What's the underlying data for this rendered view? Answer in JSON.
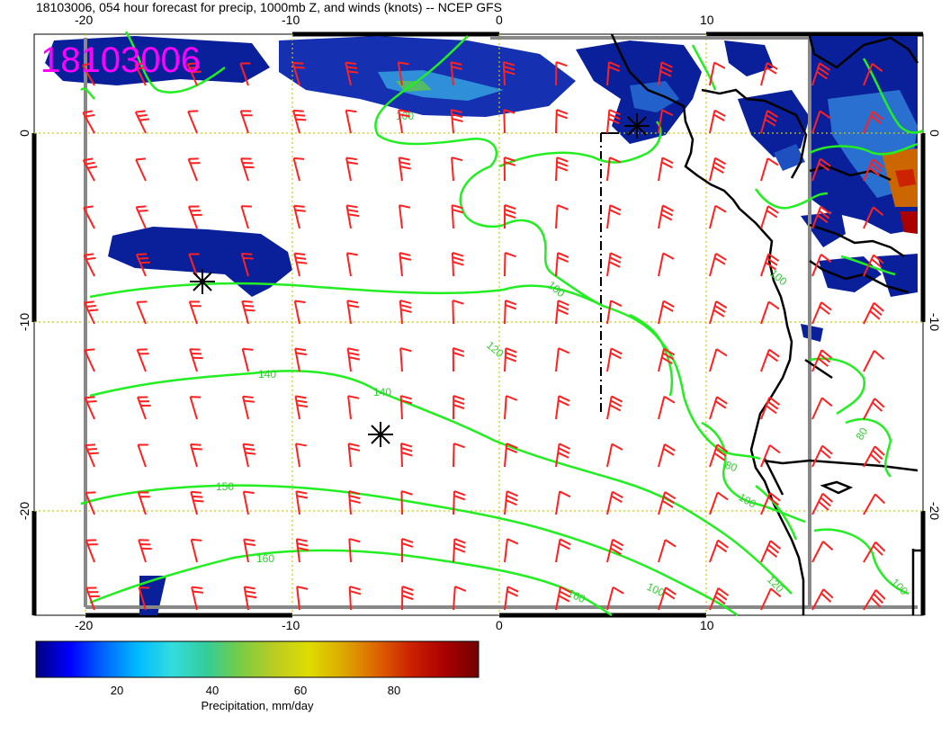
{
  "title": "18103006, 054 hour forecast for precip, 1000mb Z, and winds (knots) -- NCEP GFS",
  "stamp": "18103006",
  "top_ticks": [
    "-20",
    "-10",
    "0",
    "10"
  ],
  "bottom_ticks": [
    "-20",
    "-10",
    "0",
    "10"
  ],
  "left_ticks": [
    "0",
    "-10",
    "-20"
  ],
  "right_ticks": [
    "0",
    "-10",
    "-20"
  ],
  "contour_labels": [
    "100",
    "100",
    "140",
    "140",
    "120",
    "150",
    "160",
    "160",
    "100",
    "80",
    "100",
    "80",
    "100",
    "100",
    "120",
    "100"
  ],
  "colorbar": {
    "title": "Precipitation, mm/day",
    "ticks": [
      "20",
      "40",
      "60",
      "80"
    ],
    "colors": [
      "#00007f",
      "#0000ff",
      "#0066ff",
      "#00bbff",
      "#33dddd",
      "#33cc99",
      "#77cc44",
      "#bbcc22",
      "#dddd00",
      "#ddaa00",
      "#dd6600",
      "#cc2200",
      "#aa0000",
      "#700000"
    ]
  },
  "colors": {
    "barb": "#ff2020",
    "contour": "#22ee22",
    "coast": "#000000",
    "grid": "#cccc00",
    "stamp": "#ff00ff"
  }
}
